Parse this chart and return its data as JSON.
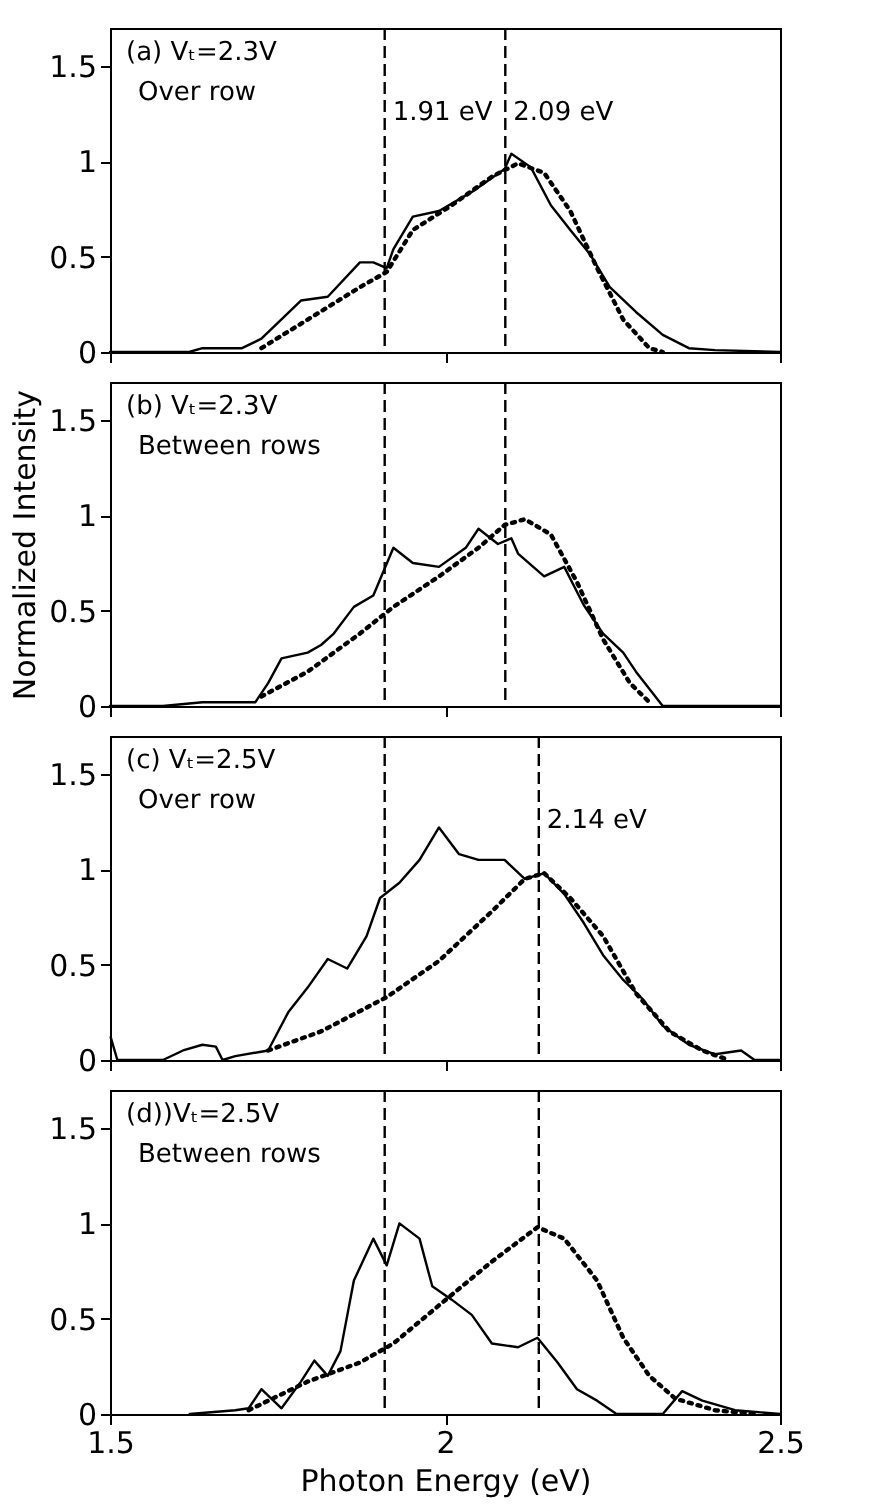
{
  "chart_data": [
    {
      "type": "line",
      "annotations": [
        "(a) Vₜ=2.3V",
        "Over row"
      ],
      "xlim": [
        1.5,
        2.5
      ],
      "xticks": [
        1.5,
        2,
        2.5
      ],
      "ylim": [
        0,
        1.7
      ],
      "yticks": [
        0,
        0.5,
        1,
        1.5
      ],
      "tick_labels": "y",
      "grid": false,
      "marker": "none",
      "ref_lines": [
        {
          "axis": "x",
          "value": 1.91,
          "label": "1.91 eV",
          "line_style": "dashed"
        },
        {
          "axis": "x",
          "value": 2.09,
          "label": "2.09 eV",
          "line_style": "dashed"
        }
      ],
      "series": [
        {
          "color": "#000000",
          "line_style": "solid",
          "x": [
            1.5,
            1.618,
            1.638,
            1.697,
            1.726,
            1.785,
            1.825,
            1.873,
            1.893,
            1.913,
            1.923,
            1.952,
            1.991,
            2.04,
            2.089,
            2.099,
            2.128,
            2.158,
            2.187,
            2.217,
            2.246,
            2.285,
            2.325,
            2.364,
            2.403,
            2.5
          ],
          "values": [
            0,
            0,
            0.02,
            0.02,
            0.07,
            0.27,
            0.29,
            0.47,
            0.47,
            0.44,
            0.54,
            0.71,
            0.74,
            0.84,
            0.96,
            1.04,
            0.97,
            0.77,
            0.64,
            0.51,
            0.34,
            0.21,
            0.09,
            0.02,
            0.01,
            0
          ]
        },
        {
          "color": "#000000",
          "line_style": "dotted",
          "x": [
            1.726,
            1.795,
            1.873,
            1.913,
            1.952,
            2.01,
            2.07,
            2.109,
            2.148,
            2.187,
            2.227,
            2.266,
            2.305,
            2.325
          ],
          "values": [
            0.02,
            0.17,
            0.34,
            0.42,
            0.64,
            0.77,
            0.92,
            0.99,
            0.94,
            0.74,
            0.44,
            0.17,
            0.02,
            0
          ]
        }
      ]
    },
    {
      "type": "line",
      "annotations": [
        "(b) Vₜ=2.3V",
        "Between rows"
      ],
      "ylabel": "Normalized Intensity",
      "xlim": [
        1.5,
        2.5
      ],
      "xticks": [
        1.5,
        2,
        2.5
      ],
      "ylim": [
        0,
        1.7
      ],
      "yticks": [
        0,
        0.5,
        1,
        1.5
      ],
      "tick_labels": "y",
      "grid": false,
      "marker": "none",
      "ref_lines": [
        {
          "axis": "x",
          "value": 1.91,
          "line_style": "dashed"
        },
        {
          "axis": "x",
          "value": 2.09,
          "line_style": "dashed"
        }
      ],
      "series": [
        {
          "color": "#000000",
          "line_style": "solid",
          "x": [
            1.5,
            1.579,
            1.638,
            1.717,
            1.736,
            1.756,
            1.795,
            1.815,
            1.834,
            1.864,
            1.893,
            1.923,
            1.952,
            1.991,
            2.031,
            2.05,
            2.079,
            2.099,
            2.109,
            2.148,
            2.178,
            2.207,
            2.236,
            2.266,
            2.285,
            2.325,
            2.5
          ],
          "values": [
            0,
            0,
            0.02,
            0.02,
            0.12,
            0.25,
            0.28,
            0.32,
            0.38,
            0.52,
            0.58,
            0.83,
            0.75,
            0.73,
            0.83,
            0.93,
            0.85,
            0.88,
            0.8,
            0.68,
            0.73,
            0.53,
            0.38,
            0.28,
            0.18,
            0,
            0
          ]
        },
        {
          "color": "#000000",
          "line_style": "dotted",
          "x": [
            1.726,
            1.795,
            1.873,
            1.923,
            1.991,
            2.05,
            2.089,
            2.119,
            2.158,
            2.197,
            2.236,
            2.276,
            2.305
          ],
          "values": [
            0.05,
            0.18,
            0.38,
            0.52,
            0.68,
            0.83,
            0.95,
            0.98,
            0.9,
            0.65,
            0.35,
            0.12,
            0.02
          ]
        }
      ]
    },
    {
      "type": "line",
      "annotations": [
        "(c) Vₜ=2.5V",
        "Over row"
      ],
      "xlim": [
        1.5,
        2.5
      ],
      "xticks": [
        1.5,
        2,
        2.5
      ],
      "ylim": [
        0,
        1.7
      ],
      "yticks": [
        0,
        0.5,
        1,
        1.5
      ],
      "tick_labels": "y",
      "grid": false,
      "marker": "none",
      "ref_lines": [
        {
          "axis": "x",
          "value": 1.91,
          "line_style": "dashed"
        },
        {
          "axis": "x",
          "value": 2.14,
          "label": "2.14 eV",
          "line_style": "dashed"
        }
      ],
      "series": [
        {
          "color": "#000000",
          "line_style": "solid",
          "x": [
            1.501,
            1.511,
            1.579,
            1.609,
            1.638,
            1.658,
            1.668,
            1.687,
            1.736,
            1.766,
            1.795,
            1.825,
            1.854,
            1.883,
            1.903,
            1.932,
            1.962,
            1.991,
            2.021,
            2.05,
            2.089,
            2.119,
            2.148,
            2.178,
            2.207,
            2.236,
            2.266,
            2.295,
            2.325,
            2.364,
            2.403,
            2.442,
            2.462,
            2.5
          ],
          "values": [
            0.12,
            0,
            0,
            0.05,
            0.08,
            0.07,
            0,
            0.02,
            0.05,
            0.25,
            0.38,
            0.53,
            0.48,
            0.65,
            0.85,
            0.93,
            1.05,
            1.22,
            1.08,
            1.05,
            1.05,
            0.95,
            0.98,
            0.87,
            0.72,
            0.55,
            0.42,
            0.32,
            0.18,
            0.08,
            0.03,
            0.05,
            0,
            0
          ]
        },
        {
          "color": "#000000",
          "line_style": "dotted",
          "x": [
            1.736,
            1.815,
            1.913,
            1.991,
            2.07,
            2.119,
            2.148,
            2.187,
            2.236,
            2.285,
            2.335,
            2.384,
            2.423
          ],
          "values": [
            0.05,
            0.15,
            0.33,
            0.52,
            0.78,
            0.95,
            0.98,
            0.85,
            0.65,
            0.35,
            0.15,
            0.05,
            0
          ]
        }
      ]
    },
    {
      "type": "line",
      "annotations": [
        "(d))Vₜ=2.5V",
        "Between rows"
      ],
      "xlabel": "Photon Energy (eV)",
      "xlim": [
        1.5,
        2.5
      ],
      "xticks": [
        1.5,
        2,
        2.5
      ],
      "ylim": [
        0,
        1.7
      ],
      "yticks": [
        0,
        0.5,
        1,
        1.5
      ],
      "grid": false,
      "marker": "none",
      "ref_lines": [
        {
          "axis": "x",
          "value": 1.91,
          "line_style": "dashed"
        },
        {
          "axis": "x",
          "value": 2.14,
          "line_style": "dashed"
        }
      ],
      "series": [
        {
          "color": "#000000",
          "line_style": "solid",
          "x": [
            1.619,
            1.687,
            1.707,
            1.726,
            1.756,
            1.785,
            1.805,
            1.825,
            1.844,
            1.864,
            1.893,
            1.913,
            1.932,
            1.962,
            1.981,
            2.01,
            2.04,
            2.07,
            2.109,
            2.138,
            2.168,
            2.197,
            2.227,
            2.256,
            2.325,
            2.354,
            2.384,
            2.433,
            2.5
          ],
          "values": [
            0,
            0.02,
            0.03,
            0.13,
            0.03,
            0.17,
            0.28,
            0.2,
            0.33,
            0.7,
            0.92,
            0.78,
            1.0,
            0.92,
            0.67,
            0.6,
            0.52,
            0.37,
            0.35,
            0.4,
            0.27,
            0.13,
            0.07,
            0,
            0,
            0.12,
            0.07,
            0.02,
            0
          ]
        },
        {
          "color": "#000000",
          "line_style": "dotted",
          "x": [
            1.707,
            1.795,
            1.873,
            1.923,
            1.991,
            2.07,
            2.138,
            2.178,
            2.227,
            2.266,
            2.305,
            2.344,
            2.403,
            2.462
          ],
          "values": [
            0.02,
            0.17,
            0.27,
            0.37,
            0.57,
            0.8,
            0.98,
            0.92,
            0.7,
            0.4,
            0.2,
            0.08,
            0.02,
            0
          ]
        }
      ]
    }
  ]
}
